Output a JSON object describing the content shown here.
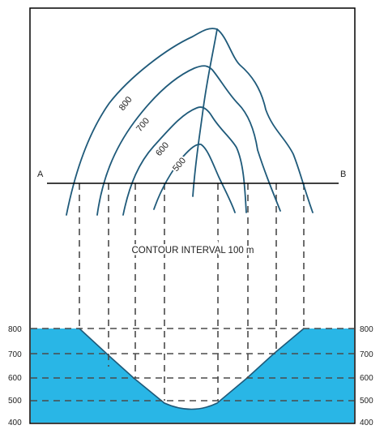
{
  "colors": {
    "contour": "#1f5a7a",
    "water": "#29b6e6",
    "frame": "#000000",
    "dash": "#4a4a4a",
    "section_line": "#000000"
  },
  "map": {
    "contour_labels": [
      "800",
      "700",
      "600",
      "500"
    ],
    "point_a": "A",
    "point_b": "B"
  },
  "interval_note": "CONTOUR INTERVAL 100 m",
  "profile": {
    "left_axis": [
      "800",
      "700",
      "600",
      "500",
      "400"
    ],
    "right_axis": [
      "800",
      "700",
      "600",
      "500",
      "400"
    ]
  }
}
